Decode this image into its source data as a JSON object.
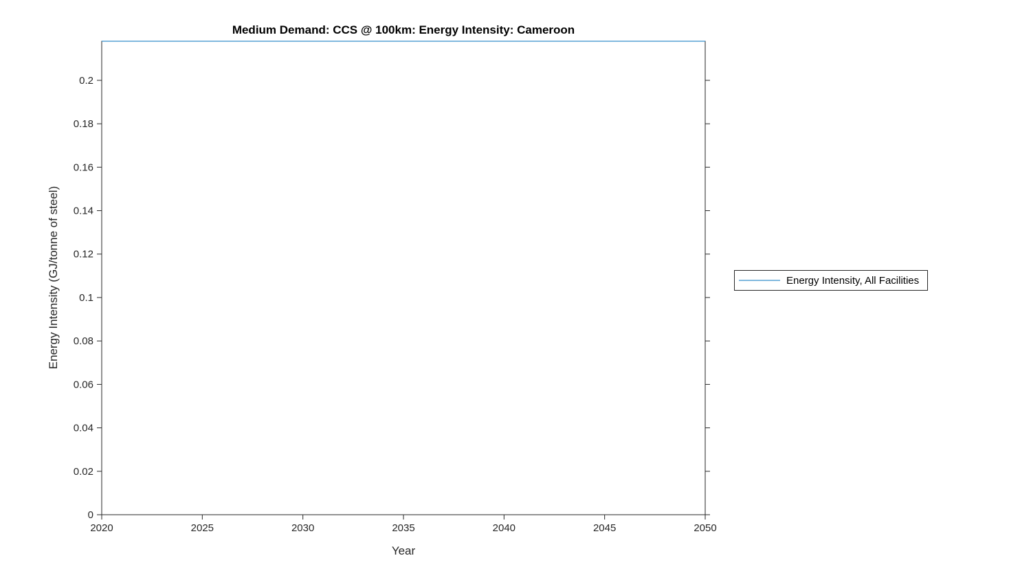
{
  "chart_data": {
    "type": "line",
    "title": "Medium Demand: CCS @ 100km: Energy Intensity: Cameroon",
    "xlabel": "Year",
    "ylabel": "Energy Intensity (GJ/tonne of steel)",
    "xlim": [
      2020,
      2050
    ],
    "ylim": [
      0,
      0.218
    ],
    "xticks": [
      2020,
      2025,
      2030,
      2035,
      2040,
      2045,
      2050
    ],
    "yticks": [
      0,
      0.02,
      0.04,
      0.06,
      0.08,
      0.1,
      0.12,
      0.14,
      0.16,
      0.18,
      0.2
    ],
    "grid": false,
    "legend_position": "right-outside",
    "axis_color": "#262626",
    "x": [
      2020,
      2021,
      2022,
      2023,
      2024,
      2025,
      2026,
      2027,
      2028,
      2029,
      2030,
      2031,
      2032,
      2033,
      2034,
      2035,
      2036,
      2037,
      2038,
      2039,
      2040,
      2041,
      2042,
      2043,
      2044,
      2045,
      2046,
      2047,
      2048,
      2049,
      2050
    ],
    "series": [
      {
        "name": "Energy Intensity, All Facilities",
        "color": "#0072BD",
        "values": [
          0.218,
          0.218,
          0.218,
          0.218,
          0.218,
          0.218,
          0.218,
          0.218,
          0.218,
          0.218,
          0.218,
          0.218,
          0.218,
          0.218,
          0.218,
          0.218,
          0.218,
          0.218,
          0.218,
          0.218,
          0.218,
          0.218,
          0.218,
          0.218,
          0.218,
          0.218,
          0.218,
          0.218,
          0.218,
          0.218,
          0.218
        ]
      }
    ]
  }
}
